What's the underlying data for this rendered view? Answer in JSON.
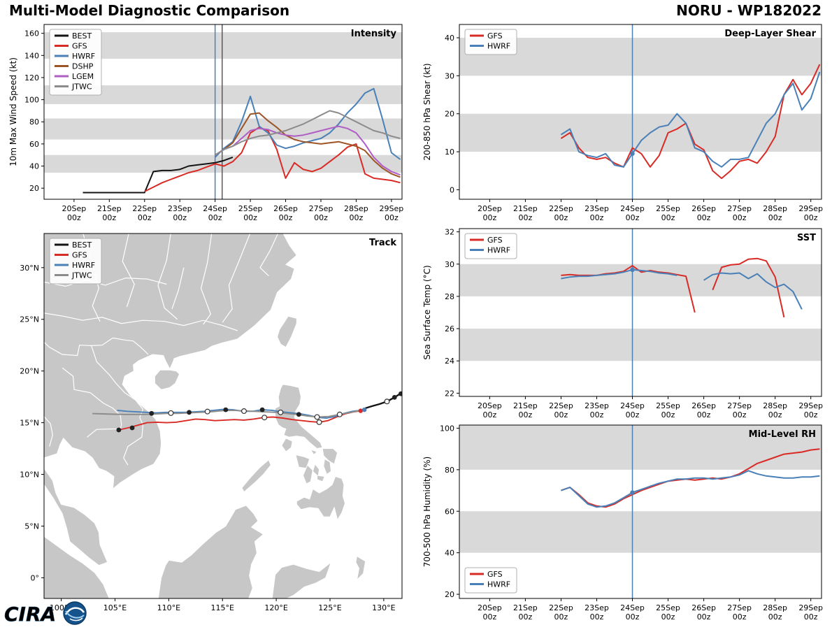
{
  "header": {
    "title": "Multi-Model Diagnostic Comparison",
    "storm_id": "NORU - WP182022"
  },
  "logo": {
    "text": "CIRA"
  },
  "colors": {
    "BEST": "#141414",
    "GFS": "#d92b26",
    "HWRF": "#4a80b8",
    "DSHP": "#9d5526",
    "LGEM": "#b05ec6",
    "JTWC": "#8c8c8c",
    "band": "#d9d9d9",
    "land": "#c7c7c7",
    "ocean": "#ffffff",
    "vline": "#4a80b8",
    "vline2": "#5a5a5a",
    "marker_dark": "#222222"
  },
  "time_axis": {
    "range": [
      19.15,
      29.3
    ],
    "ticks": [
      20,
      21,
      22,
      23,
      24,
      25,
      26,
      27,
      28,
      29
    ],
    "labels": [
      "20Sep",
      "21Sep",
      "22Sep",
      "23Sep",
      "24Sep",
      "25Sep",
      "26Sep",
      "27Sep",
      "28Sep",
      "29Sep"
    ],
    "line2": "00z"
  },
  "chart_data": [
    {
      "id": "intensity",
      "type": "line",
      "title": "Intensity",
      "ylabel": "10m Max Wind Speed (kt)",
      "ylim": [
        10,
        168
      ],
      "yticks": [
        20,
        40,
        60,
        80,
        100,
        120,
        140,
        160
      ],
      "bands": [
        [
          34,
          50
        ],
        [
          64,
          83
        ],
        [
          96,
          113
        ],
        [
          137,
          161
        ]
      ],
      "vlines": [
        {
          "x": 24.0,
          "color": "vline"
        },
        {
          "x": 24.2,
          "color": "vline2"
        }
      ],
      "legend_pos": "tl",
      "series": [
        {
          "name": "BEST",
          "x0": 20.25,
          "dx": 0.25,
          "y": [
            16,
            16,
            16,
            16,
            16,
            16,
            16,
            16,
            35,
            36,
            36,
            37,
            40,
            41,
            42,
            43,
            45,
            48
          ]
        },
        {
          "name": "GFS",
          "x0": 22.0,
          "dx": 0.25,
          "y": [
            17,
            21,
            25,
            28,
            31,
            34,
            36,
            39,
            42,
            40,
            44,
            52,
            70,
            75,
            72,
            55,
            29,
            43,
            37,
            35,
            38,
            44,
            50,
            57,
            60,
            33,
            29,
            28,
            27,
            25
          ]
        },
        {
          "name": "HWRF",
          "x0": 24.0,
          "dx": 0.25,
          "y": [
            48,
            56,
            62,
            80,
            103,
            76,
            70,
            59,
            56,
            58,
            61,
            63,
            65,
            70,
            78,
            88,
            96,
            106,
            110,
            82,
            52,
            46
          ]
        },
        {
          "name": "DSHP",
          "x0": 24.0,
          "dx": 0.25,
          "y": [
            50,
            55,
            61,
            74,
            87,
            88,
            81,
            75,
            68,
            64,
            62,
            61,
            60,
            61,
            62,
            60,
            58,
            54,
            45,
            38,
            33,
            30
          ]
        },
        {
          "name": "LGEM",
          "x0": 24.0,
          "dx": 0.25,
          "y": [
            50,
            55,
            58,
            65,
            72,
            74,
            73,
            70,
            68,
            67,
            68,
            70,
            72,
            74,
            76,
            74,
            70,
            60,
            48,
            40,
            35,
            32
          ]
        },
        {
          "name": "JTWC",
          "x0": 24.0,
          "dx": 0.25,
          "y": [
            50,
            55,
            58,
            62,
            65,
            67,
            68,
            70,
            72,
            75,
            78,
            82,
            86,
            90,
            88,
            84,
            80,
            76,
            72,
            70,
            67,
            65
          ]
        }
      ]
    },
    {
      "id": "shear",
      "type": "line",
      "title": "Deep-Layer Shear",
      "ylabel": "200-850 hPa Shear (kt)",
      "ylim": [
        -2.5,
        43.5
      ],
      "yticks": [
        0,
        10,
        20,
        30,
        40
      ],
      "bands": [
        [
          10,
          20
        ],
        [
          30,
          40
        ]
      ],
      "vlines": [
        {
          "x": 24.0,
          "color": "vline"
        }
      ],
      "legend_pos": "tl",
      "series": [
        {
          "name": "GFS",
          "x0": 22.0,
          "dx": 0.25,
          "y": [
            13.5,
            15,
            11,
            8.5,
            8,
            8.5,
            7,
            6,
            11,
            9.5,
            6,
            9,
            15,
            16,
            17.5,
            12,
            10.5,
            5,
            3,
            5,
            7.5,
            8,
            7,
            10,
            14,
            25,
            29,
            25,
            28,
            33
          ]
        },
        {
          "name": "HWRF",
          "x0": 22.0,
          "dx": 0.25,
          "y": [
            14.5,
            16,
            10,
            9,
            8.5,
            9.5,
            6.5,
            6,
            9.5,
            13,
            15,
            16.5,
            17,
            20,
            17.5,
            11,
            10,
            7.5,
            6,
            8,
            8,
            8.5,
            13,
            17.5,
            20,
            25,
            28,
            21,
            24,
            31
          ],
          "dots": [
            [
              24.0,
              9.5
            ]
          ]
        }
      ]
    },
    {
      "id": "sst",
      "type": "line",
      "title": "SST",
      "ylabel": "Sea Surface Temp (°C)",
      "ylim": [
        21.8,
        32.2
      ],
      "yticks": [
        22,
        24,
        26,
        28,
        30,
        32
      ],
      "bands": [
        [
          24,
          26
        ],
        [
          28,
          30
        ]
      ],
      "vlines": [
        {
          "x": 24.0,
          "color": "vline"
        }
      ],
      "legend_pos": "tl",
      "series": [
        {
          "name": "GFS",
          "x0": 22.0,
          "dx": 0.25,
          "y": [
            29.3,
            29.35,
            29.3,
            29.3,
            29.3,
            29.4,
            29.45,
            29.55,
            29.9,
            29.5,
            29.6,
            29.5,
            29.45,
            29.35,
            29.25,
            27.0,
            null,
            28.4,
            29.8,
            29.95,
            30.0,
            30.3,
            30.35,
            30.2,
            29.2,
            26.7
          ]
        },
        {
          "name": "HWRF",
          "x0": 22.0,
          "dx": 0.25,
          "y": [
            29.1,
            29.2,
            29.25,
            29.25,
            29.3,
            29.35,
            29.4,
            29.5,
            29.65,
            29.6,
            29.55,
            29.45,
            29.4,
            29.3,
            null,
            null,
            29.0,
            29.35,
            29.45,
            29.4,
            29.45,
            29.1,
            29.4,
            28.9,
            28.55,
            28.75,
            28.3,
            27.2
          ],
          "dots": [
            [
              24.0,
              29.65
            ]
          ]
        }
      ]
    },
    {
      "id": "rh",
      "type": "line",
      "title": "Mid-Level RH",
      "ylabel": "700-500 hPa Humidity (%)",
      "ylim": [
        18,
        101.5
      ],
      "yticks": [
        20,
        40,
        60,
        80,
        100
      ],
      "bands": [
        [
          40,
          60
        ],
        [
          80,
          101.5
        ]
      ],
      "vlines": [
        {
          "x": 24.0,
          "color": "vline"
        }
      ],
      "legend_pos": "bl",
      "series": [
        {
          "name": "GFS",
          "x0": 22.0,
          "dx": 0.25,
          "y": [
            70,
            71.5,
            68,
            64,
            62.5,
            62,
            63.5,
            66,
            68,
            70,
            71.5,
            73,
            74.5,
            75,
            75.5,
            75,
            75.5,
            76,
            75.5,
            76.5,
            78,
            80.5,
            83,
            84.5,
            86,
            87.5,
            88,
            88.5,
            89.5,
            90
          ]
        },
        {
          "name": "HWRF",
          "x0": 22.0,
          "dx": 0.25,
          "y": [
            70,
            71.5,
            67.5,
            63.5,
            62,
            62.5,
            64,
            66.5,
            69,
            70.5,
            72,
            73.5,
            74.5,
            75.5,
            75.5,
            76,
            76,
            75.5,
            76,
            76.5,
            77.5,
            79.5,
            78,
            77,
            76.5,
            76,
            76,
            76.5,
            76.5,
            77
          ],
          "dots": [
            [
              24.0,
              69
            ]
          ]
        }
      ]
    },
    {
      "id": "track",
      "type": "track",
      "title": "Track",
      "xlim": [
        98.4,
        131.7
      ],
      "ylim": [
        -2.0,
        33.3
      ],
      "xticks": [
        100,
        105,
        110,
        115,
        120,
        125,
        130
      ],
      "xtick_labels": [
        "100°E",
        "105°E",
        "110°E",
        "115°E",
        "120°E",
        "125°E",
        "130°E"
      ],
      "yticks": [
        0,
        5,
        10,
        15,
        20,
        25,
        30
      ],
      "ytick_labels": [
        "0°",
        "5°N",
        "10°N",
        "15°N",
        "20°N",
        "25°N",
        "30°N"
      ],
      "legend": [
        "BEST",
        "GFS",
        "HWRF",
        "JTWC"
      ],
      "series": [
        {
          "name": "BEST",
          "points": [
            [
              131.7,
              17.9
            ],
            [
              131.0,
              17.45
            ],
            [
              130.3,
              17.05
            ],
            [
              129.6,
              16.8
            ],
            [
              128.9,
              16.6
            ],
            [
              128.3,
              16.4
            ],
            [
              127.9,
              16.2
            ]
          ]
        },
        {
          "name": "GFS",
          "points": [
            [
              127.9,
              16.15
            ],
            [
              127.2,
              16.05
            ],
            [
              126.4,
              15.85
            ],
            [
              125.6,
              15.55
            ],
            [
              124.8,
              15.2
            ],
            [
              124.0,
              15.05
            ],
            [
              123.2,
              15.1
            ],
            [
              122.4,
              15.2
            ],
            [
              121.5,
              15.3
            ],
            [
              120.6,
              15.45
            ],
            [
              119.7,
              15.55
            ],
            [
              118.8,
              15.5
            ],
            [
              117.9,
              15.35
            ],
            [
              117.0,
              15.25
            ],
            [
              116.1,
              15.3
            ],
            [
              115.2,
              15.25
            ],
            [
              114.3,
              15.2
            ],
            [
              113.4,
              15.3
            ],
            [
              112.5,
              15.35
            ],
            [
              111.6,
              15.2
            ],
            [
              110.7,
              15.05
            ],
            [
              109.8,
              15.0
            ],
            [
              108.9,
              15.05
            ],
            [
              108.0,
              15.0
            ],
            [
              107.1,
              14.75
            ],
            [
              106.2,
              14.5
            ],
            [
              105.35,
              14.3
            ]
          ]
        },
        {
          "name": "HWRF",
          "points": [
            [
              127.9,
              16.2
            ],
            [
              127.1,
              16.1
            ],
            [
              126.3,
              15.9
            ],
            [
              125.5,
              15.6
            ],
            [
              124.7,
              15.45
            ],
            [
              123.9,
              15.5
            ],
            [
              123.1,
              15.7
            ],
            [
              122.3,
              15.85
            ],
            [
              121.4,
              15.95
            ],
            [
              120.5,
              16.05
            ],
            [
              119.6,
              16.2
            ],
            [
              118.7,
              16.25
            ],
            [
              117.8,
              16.1
            ],
            [
              116.9,
              16.1
            ],
            [
              116.0,
              16.25
            ],
            [
              115.1,
              16.3
            ],
            [
              114.2,
              16.2
            ],
            [
              113.3,
              16.1
            ],
            [
              112.4,
              16.05
            ],
            [
              111.5,
              16.0
            ],
            [
              110.6,
              16.0
            ],
            [
              109.7,
              16.0
            ],
            [
              108.8,
              15.95
            ],
            [
              107.9,
              16.0
            ],
            [
              107.0,
              16.05
            ],
            [
              106.1,
              16.1
            ],
            [
              105.2,
              16.2
            ]
          ]
        },
        {
          "name": "JTWC",
          "points": [
            [
              127.9,
              16.2
            ],
            [
              126.9,
              16.0
            ],
            [
              125.9,
              15.8
            ],
            [
              124.9,
              15.6
            ],
            [
              123.9,
              15.55
            ],
            [
              122.9,
              15.65
            ],
            [
              121.9,
              15.8
            ],
            [
              120.9,
              15.9
            ],
            [
              119.9,
              16.0
            ],
            [
              118.9,
              16.05
            ],
            [
              117.9,
              16.1
            ],
            [
              116.9,
              16.15
            ],
            [
              115.9,
              16.2
            ],
            [
              114.9,
              16.15
            ],
            [
              113.9,
              16.05
            ],
            [
              112.9,
              16.0
            ],
            [
              111.9,
              15.95
            ],
            [
              110.9,
              15.9
            ],
            [
              109.9,
              15.9
            ],
            [
              108.9,
              15.85
            ],
            [
              107.9,
              15.8
            ],
            [
              106.9,
              15.8
            ],
            [
              105.9,
              15.8
            ],
            [
              104.9,
              15.82
            ],
            [
              103.9,
              15.85
            ],
            [
              102.9,
              15.88
            ]
          ]
        }
      ],
      "markers": {
        "filled": [
          [
            131.0,
            17.45
          ],
          [
            131.6,
            17.8
          ],
          [
            105.35,
            14.3
          ],
          [
            106.6,
            14.5
          ],
          [
            108.4,
            15.9
          ],
          [
            111.9,
            16.0
          ],
          [
            115.3,
            16.25
          ],
          [
            118.7,
            16.25
          ],
          [
            122.1,
            15.8
          ]
        ],
        "open": [
          [
            130.3,
            17.05
          ],
          [
            110.2,
            15.93
          ],
          [
            113.6,
            16.08
          ],
          [
            117.0,
            16.12
          ],
          [
            120.4,
            16.0
          ],
          [
            123.8,
            15.55
          ],
          [
            125.9,
            15.8
          ],
          [
            124.0,
            15.05
          ],
          [
            118.9,
            15.5
          ]
        ],
        "colored": [
          {
            "lon": 127.85,
            "lat": 16.15,
            "color": "#d92b26"
          },
          {
            "lon": 128.2,
            "lat": 16.25,
            "color": "#4a80b8"
          }
        ]
      }
    }
  ]
}
